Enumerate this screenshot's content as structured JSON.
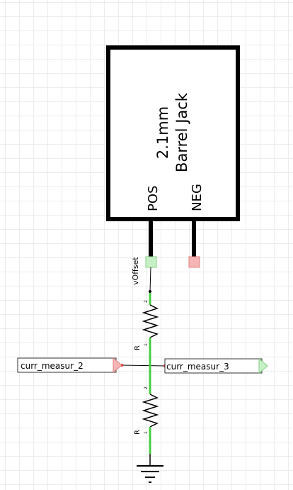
{
  "component": {
    "title_line1": "2.1mm",
    "title_line2": "Barrel Jack",
    "pin_pos": "POS",
    "pin_neg": "NEG"
  },
  "net_labels": {
    "voffset": "vOffset"
  },
  "resistors": [
    {
      "label": "R",
      "pin_top": "2",
      "pin_bottom": "1"
    },
    {
      "label": "R",
      "pin_top": "2",
      "pin_bottom": "1"
    }
  ],
  "ports": {
    "left": "curr_measur_2",
    "right": "curr_measur_3"
  },
  "colors": {
    "wire": "#000000",
    "pin_green": "#44cc44",
    "pin_red": "#ee4444",
    "box_green_fill": "#c8f0c8",
    "box_red_fill": "#f5b5b5"
  }
}
